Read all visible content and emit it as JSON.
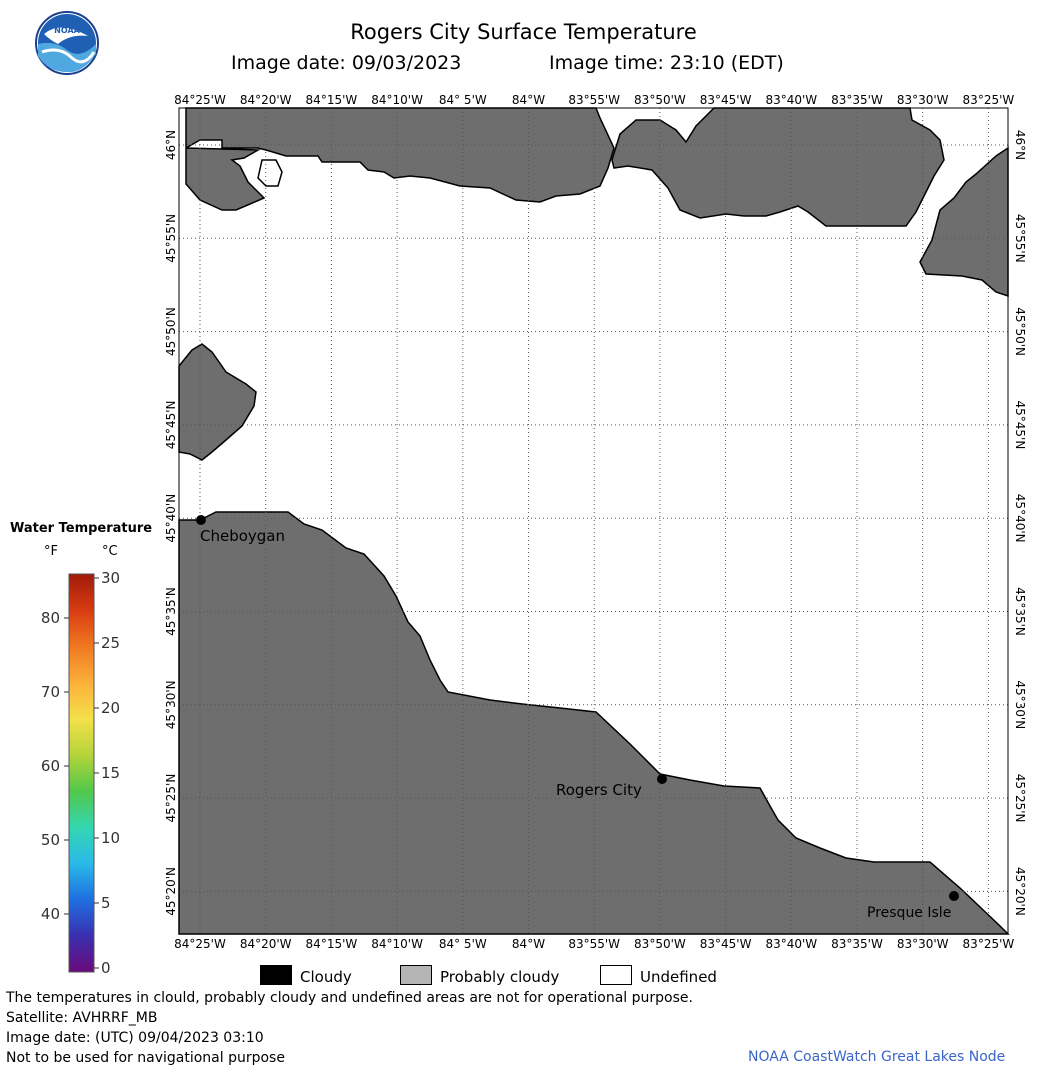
{
  "title": "Rogers City Surface Temperature",
  "image_date_label": "Image date: 09/03/2023",
  "image_time_label": "Image time: 23:10 (EDT)",
  "logo_text": "NOAA",
  "longitude_labels": [
    "84°25'W",
    "84°20'W",
    "84°15'W",
    "84°10'W",
    "84° 5'W",
    "84°W",
    "83°55'W",
    "83°50'W",
    "83°45'W",
    "83°40'W",
    "83°35'W",
    "83°30'W",
    "83°25'W"
  ],
  "latitude_labels": [
    "46°N",
    "45°55'N",
    "45°50'N",
    "45°45'N",
    "45°40'N",
    "45°35'N",
    "45°30'N",
    "45°25'N",
    "45°20'N"
  ],
  "places": [
    {
      "name": "Cheboygan"
    },
    {
      "name": "Rogers City"
    },
    {
      "name": "Presque Isle"
    }
  ],
  "legend": {
    "title": "Water Temperature",
    "unit_f": "°F",
    "unit_c": "°C",
    "fahrenheit_ticks": [
      "80",
      "70",
      "60",
      "50",
      "40"
    ],
    "celsius_ticks": [
      "30",
      "25",
      "20",
      "15",
      "10",
      "5",
      "0"
    ],
    "colors": [
      "#6a0a7a",
      "#3a2fb0",
      "#1f6fe0",
      "#2ab9e8",
      "#34d6b0",
      "#52c84a",
      "#b5d43a",
      "#f4e04a",
      "#fbb03a",
      "#f07820",
      "#d83c12",
      "#a01a0a"
    ]
  },
  "key": [
    {
      "label": "Cloudy",
      "color": "#000000"
    },
    {
      "label": "Probably cloudy",
      "color": "#b4b4b4"
    },
    {
      "label": "Undefined",
      "color": "#ffffff"
    }
  ],
  "land_color": "#6e6e6e",
  "footer": {
    "line1": "The temperatures in clould, probably cloudy and undefined areas are not for operational purpose.",
    "line2": "Satellite: AVHRRF_MB",
    "line3": "Image date: (UTC) 09/04/2023  03:10",
    "line4": "Not to be used for navigational purpose"
  },
  "credit": "NOAA CoastWatch Great Lakes Node"
}
